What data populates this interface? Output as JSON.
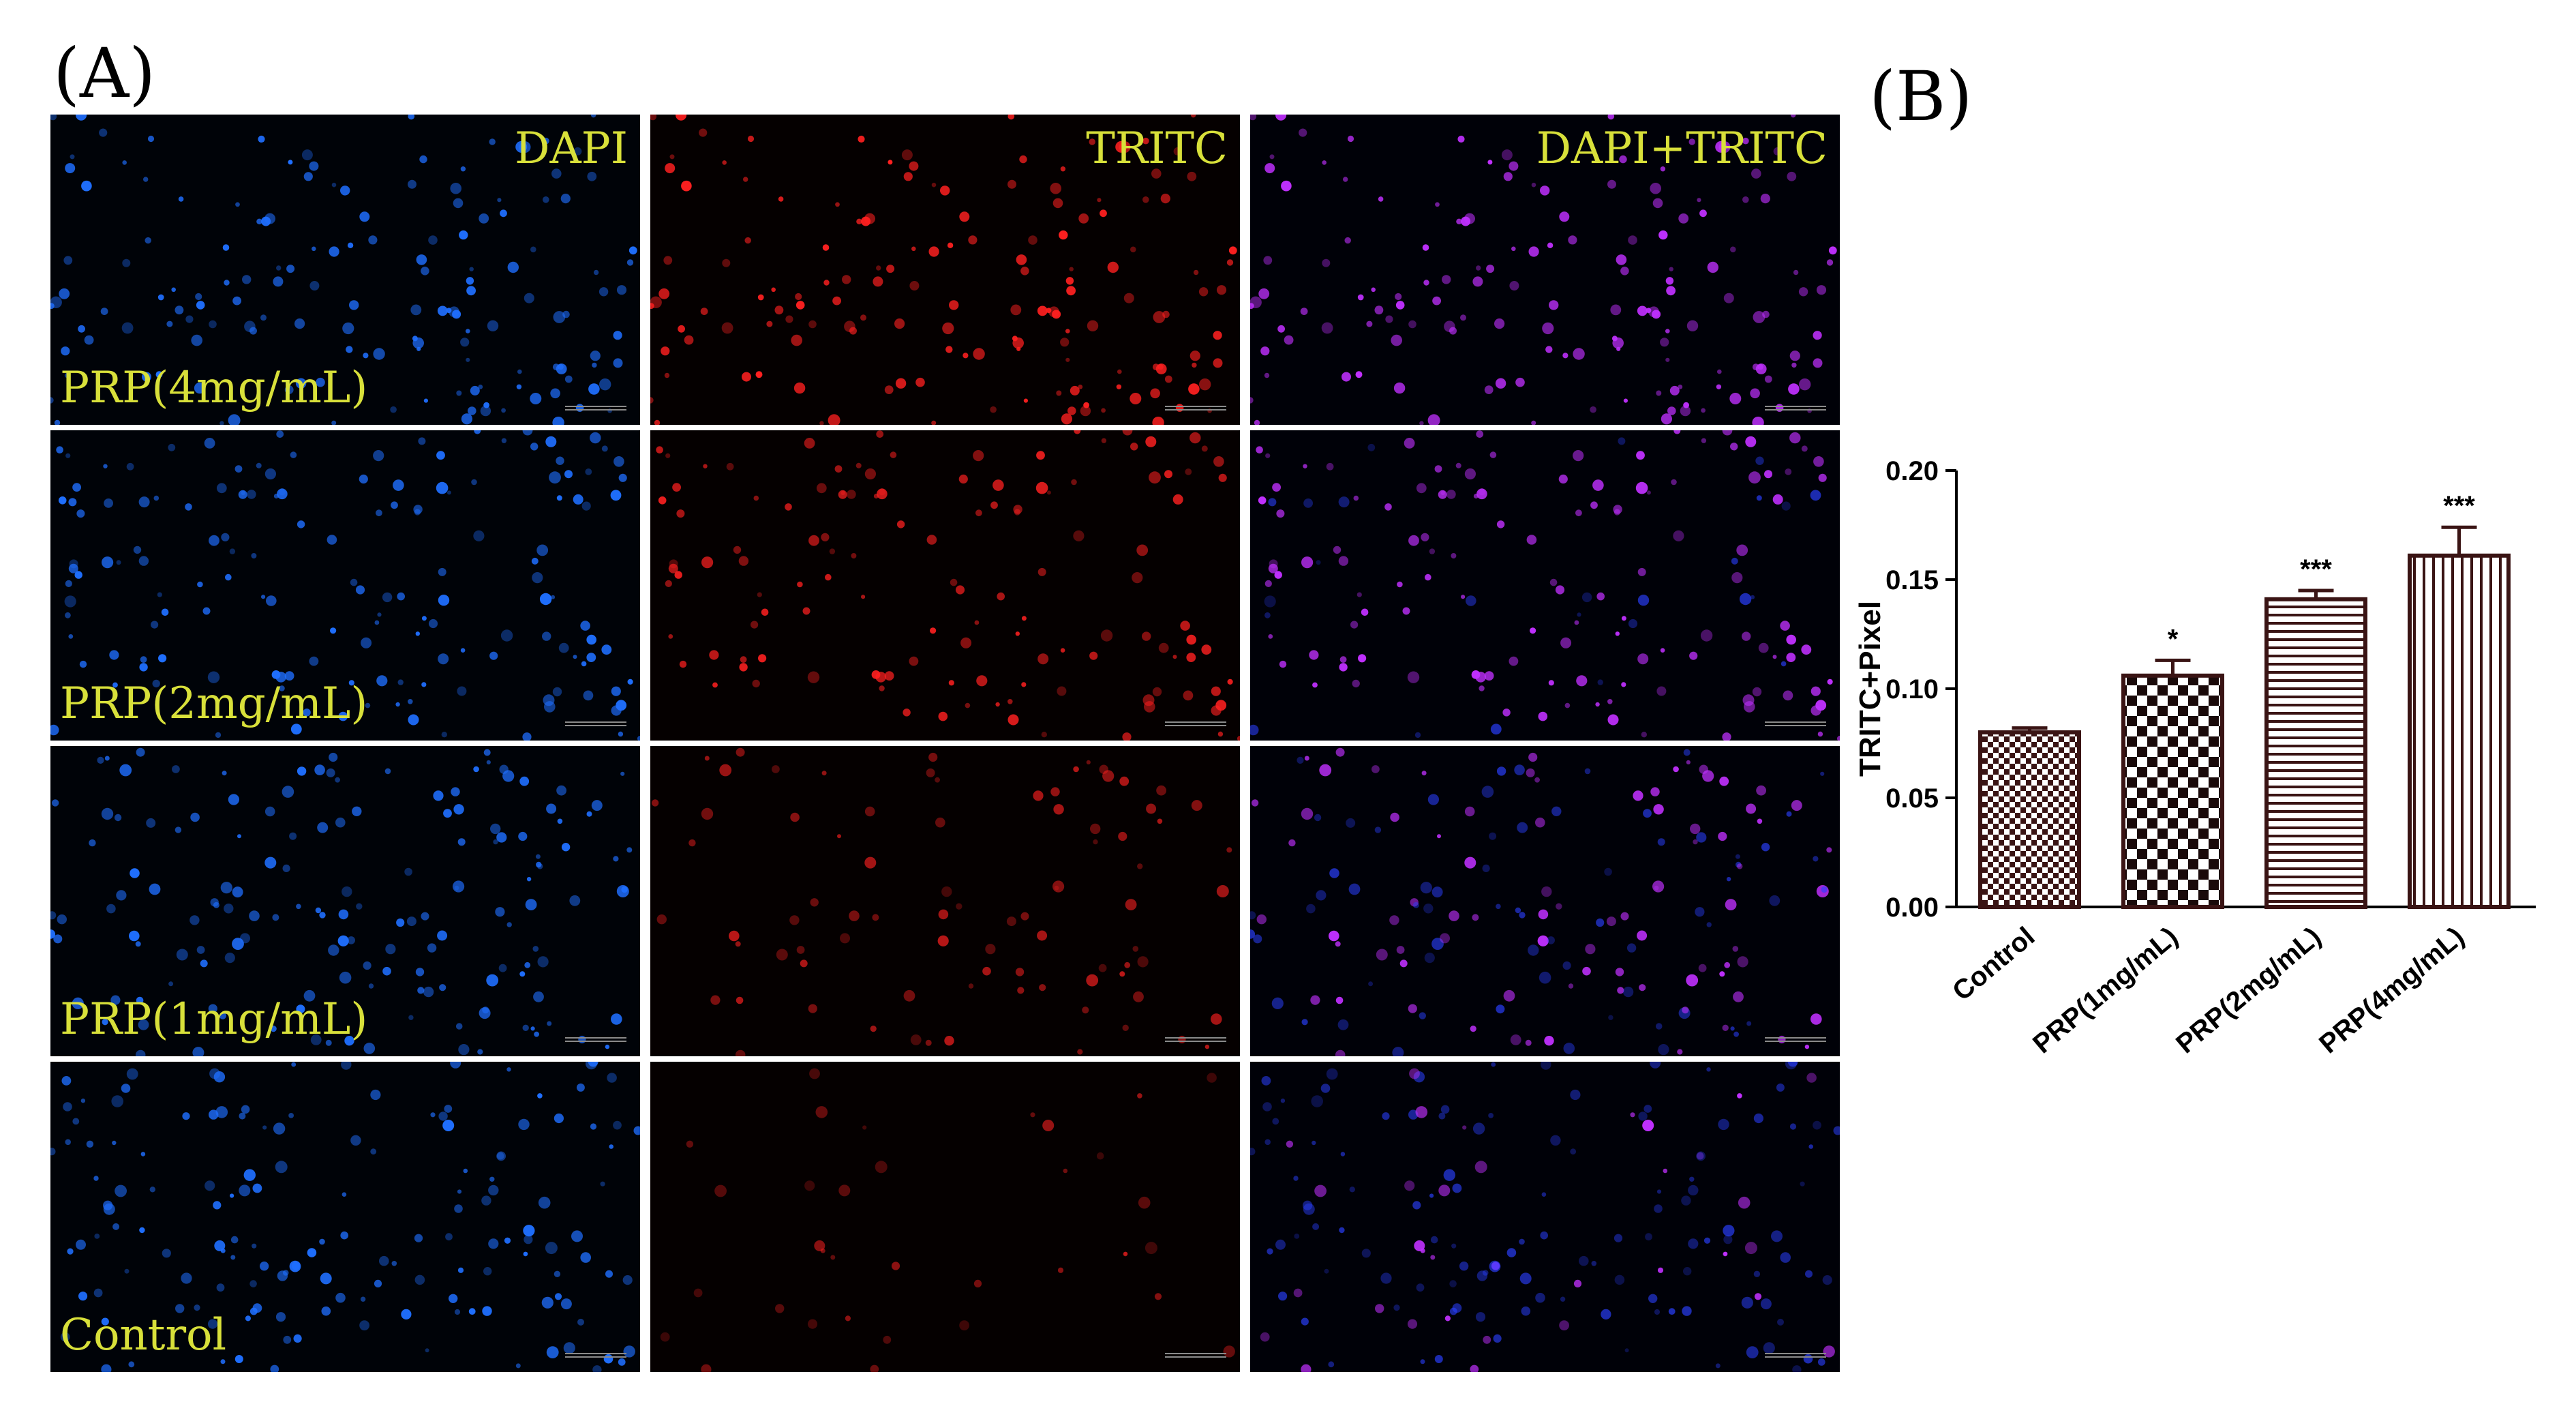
{
  "panel_a_label": "(A)",
  "panel_b_label": "(B)",
  "micrographs": {
    "channels": [
      {
        "label": "DAPI",
        "dot_color": "#1f6fff",
        "bg": "#000308"
      },
      {
        "label": "TRITC",
        "dot_color": "#ff2020",
        "bg": "#050000"
      },
      {
        "label": "DAPI+TRITC",
        "dot_color": "#c030ff",
        "bg": "#000108"
      }
    ],
    "rows": [
      {
        "label": "PRP(4mg/mL)",
        "red_intensity": 1.0
      },
      {
        "label": "PRP(2mg/mL)",
        "red_intensity": 0.85
      },
      {
        "label": "PRP(1mg/mL)",
        "red_intensity": 0.55
      },
      {
        "label": "Control",
        "red_intensity": 0.3
      }
    ],
    "label_color": "#d8e03a"
  },
  "chart_data": {
    "type": "bar",
    "categories": [
      "Control",
      "PRP(1mg/mL)",
      "PRP(2mg/mL)",
      "PRP(4mg/mL)"
    ],
    "values": [
      0.08,
      0.106,
      0.141,
      0.161
    ],
    "errors": [
      0.002,
      0.007,
      0.004,
      0.013
    ],
    "significance": [
      "",
      "*",
      "***",
      "***"
    ],
    "fill_patterns": [
      "checker-fine",
      "checker-coarse",
      "horizontal-lines",
      "vertical-lines"
    ],
    "ylabel": "TRITC+Pixel",
    "xlabel": "",
    "ylim": [
      0,
      0.2
    ],
    "yticks": [
      "0.00",
      "0.05",
      "0.10",
      "0.15",
      "0.20"
    ],
    "ytick_values": [
      0,
      0.05,
      0.1,
      0.15,
      0.2
    ],
    "grid": false,
    "bar_color": "#3a1414"
  }
}
